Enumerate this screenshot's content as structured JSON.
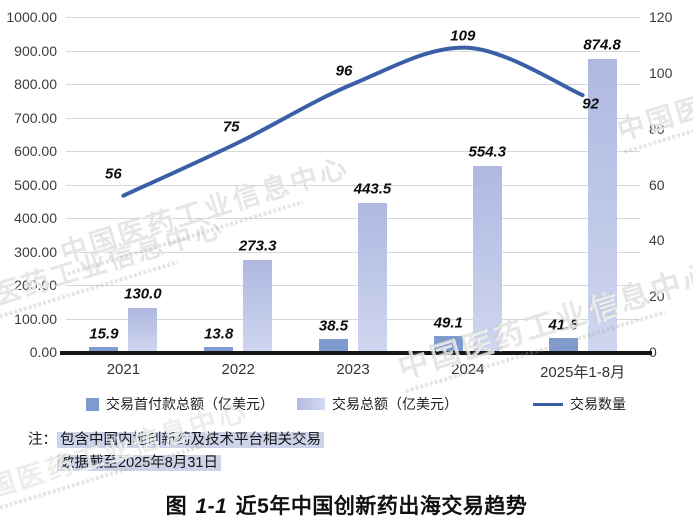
{
  "title": {
    "prefix": "图",
    "number": "1-1",
    "rest": "近5年中国创新药出海交易趋势"
  },
  "note": {
    "label": "注：",
    "line1": "包含中国内地创新药及技术平台相关交易",
    "line2": "数据截至2025年8月31日"
  },
  "watermark_text": "中国医药工业信息中心",
  "colors": {
    "bar_upfront": "#7e9ace",
    "bar_total_top": "#afb8e1",
    "bar_total_bottom": "#cfd6ef",
    "line": "#3a5fa7",
    "gridline": "#d8d8d8",
    "axis_line": "#161616",
    "note_highlight": "#cdd3e9"
  },
  "chart_data": {
    "type": "bar",
    "subtype": "combo-bar-line",
    "categories": [
      "2021",
      "2022",
      "2023",
      "2024",
      "2025年1-8月"
    ],
    "series": [
      {
        "name": "交易首付款总额（亿美元）",
        "type": "bar",
        "axis": "left",
        "values": [
          15.9,
          13.8,
          38.5,
          49.1,
          41.6
        ],
        "labels": [
          "15.9",
          "13.8",
          "38.5",
          "49.1",
          "41.6"
        ],
        "color": "#7e9ace"
      },
      {
        "name": "交易总额（亿美元）",
        "type": "bar",
        "axis": "left",
        "values": [
          130.0,
          273.3,
          443.5,
          554.3,
          874.8
        ],
        "labels": [
          "130.0",
          "273.3",
          "443.5",
          "554.3",
          "874.8"
        ],
        "color": "#bcc4e7"
      },
      {
        "name": "交易数量",
        "type": "line",
        "axis": "right",
        "values": [
          56,
          75,
          96,
          109,
          92
        ],
        "labels": [
          "56",
          "75",
          "96",
          "109",
          "92"
        ],
        "color": "#3a5fa7"
      }
    ],
    "left_axis": {
      "min": 0,
      "max": 1000,
      "step": 100,
      "tick_labels": [
        "0.00",
        "100.00",
        "200.00",
        "300.00",
        "400.00",
        "500.00",
        "600.00",
        "700.00",
        "800.00",
        "900.00",
        "1000.00"
      ]
    },
    "right_axis": {
      "min": 0,
      "max": 120,
      "step": 20,
      "tick_labels": [
        "0",
        "20",
        "40",
        "60",
        "80",
        "100",
        "120"
      ]
    },
    "grid": true,
    "legend_position": "bottom",
    "title": "图 1-1 近5年中国创新药出海交易趋势"
  }
}
